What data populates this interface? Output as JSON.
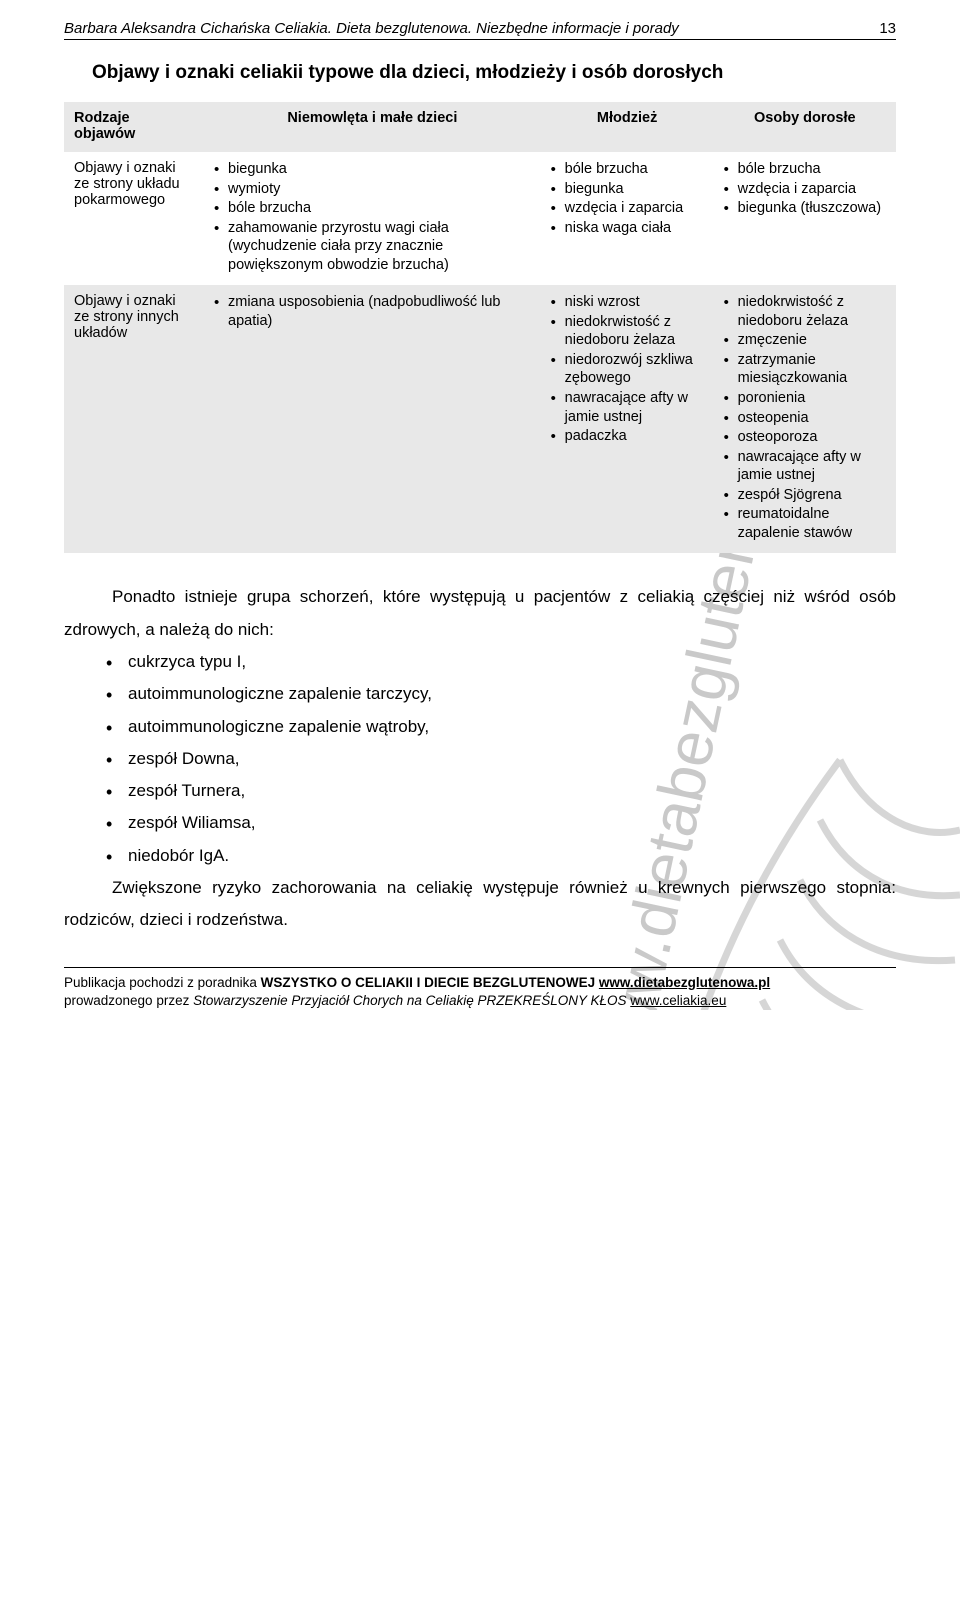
{
  "page_number": "13",
  "header_author": "Barbara Aleksandra Cichańska ",
  "header_title": "Celiakia. Dieta bezglutenowa. Niezbędne informacje i porady",
  "section_title": "Objawy i oznaki celiakii typowe dla dzieci, młodzieży i osób dorosłych",
  "table": {
    "columns": [
      "Rodzaje objawów",
      "Niemowlęta i małe dzieci",
      "Młodzież",
      "Osoby dorosłe"
    ],
    "col_widths": [
      "140px",
      "220px",
      "220px",
      "220px"
    ],
    "header_bg": "#e8e8e8",
    "row_bgs": [
      "#ffffff",
      "#e8e8e8"
    ],
    "rows": [
      {
        "label": "Objawy i oznaki ze strony układu pokarmowego",
        "cells": [
          [
            "biegunka",
            "wymioty",
            "bóle brzucha",
            "zahamowanie przyrostu wagi ciała (wychudzenie ciała przy znacznie powiększonym obwodzie brzucha)"
          ],
          [
            "bóle brzucha",
            "biegunka",
            "wzdęcia i zaparcia",
            "niska waga ciała"
          ],
          [
            "bóle brzucha",
            "wzdęcia i zaparcia",
            "biegunka (tłuszczowa)"
          ]
        ]
      },
      {
        "label": "Objawy i oznaki ze strony innych układów",
        "cells": [
          [
            "zmiana usposobienia (nadpobudliwość lub apatia)"
          ],
          [
            "niski wzrost",
            "niedokrwistość z niedoboru żelaza",
            "niedorozwój szkliwa zębowego",
            "nawracające afty w jamie ustnej",
            "padaczka"
          ],
          [
            "niedokrwistość z niedoboru żelaza",
            "zmęczenie",
            "zatrzymanie miesiączkowania",
            "poronienia",
            "osteopenia",
            "osteoporoza",
            "nawracające afty w jamie ustnej",
            "zespół Sjögrena",
            "reumatoidalne zapalenie stawów"
          ]
        ]
      }
    ]
  },
  "paragraph1_a": "Ponadto istnieje grupa schorzeń, które występują u pacjentów z celiakią częściej niż wśród osób zdrowych, a należą do nich:",
  "bullets": [
    "cukrzyca typu I,",
    "autoimmunologiczne zapalenie tarczycy,",
    "autoimmunologiczne zapalenie wątroby,",
    "zespół Downa,",
    "zespół Turnera,",
    "zespół Wiliamsa,",
    "niedobór IgA."
  ],
  "paragraph2": "Zwiększone ryzyko zachorowania na celiakię występuje również u krewnych pierwszego stopnia: rodziców, dzieci i rodzeństwa.",
  "footer": {
    "line1_a": "Publikacja pochodzi z poradnika ",
    "line1_b": "WSZYSTKO O CELIAKII I DIECIE BEZGLUTENOWEJ ",
    "link1": "www.dietabezglutenowa.pl",
    "line2_a": "prowadzonego przez ",
    "line2_b": "Stowarzyszenie Przyjaciół Chorych na Celiakię ",
    "line2_c": "PRZEKREŚLONY KŁOS ",
    "link2": "www.celiakia.eu"
  },
  "watermark": {
    "text": "www.dietabezglutenowa.pl",
    "color": "#bfbfbf",
    "wheat_color": "#bfbfbf"
  }
}
